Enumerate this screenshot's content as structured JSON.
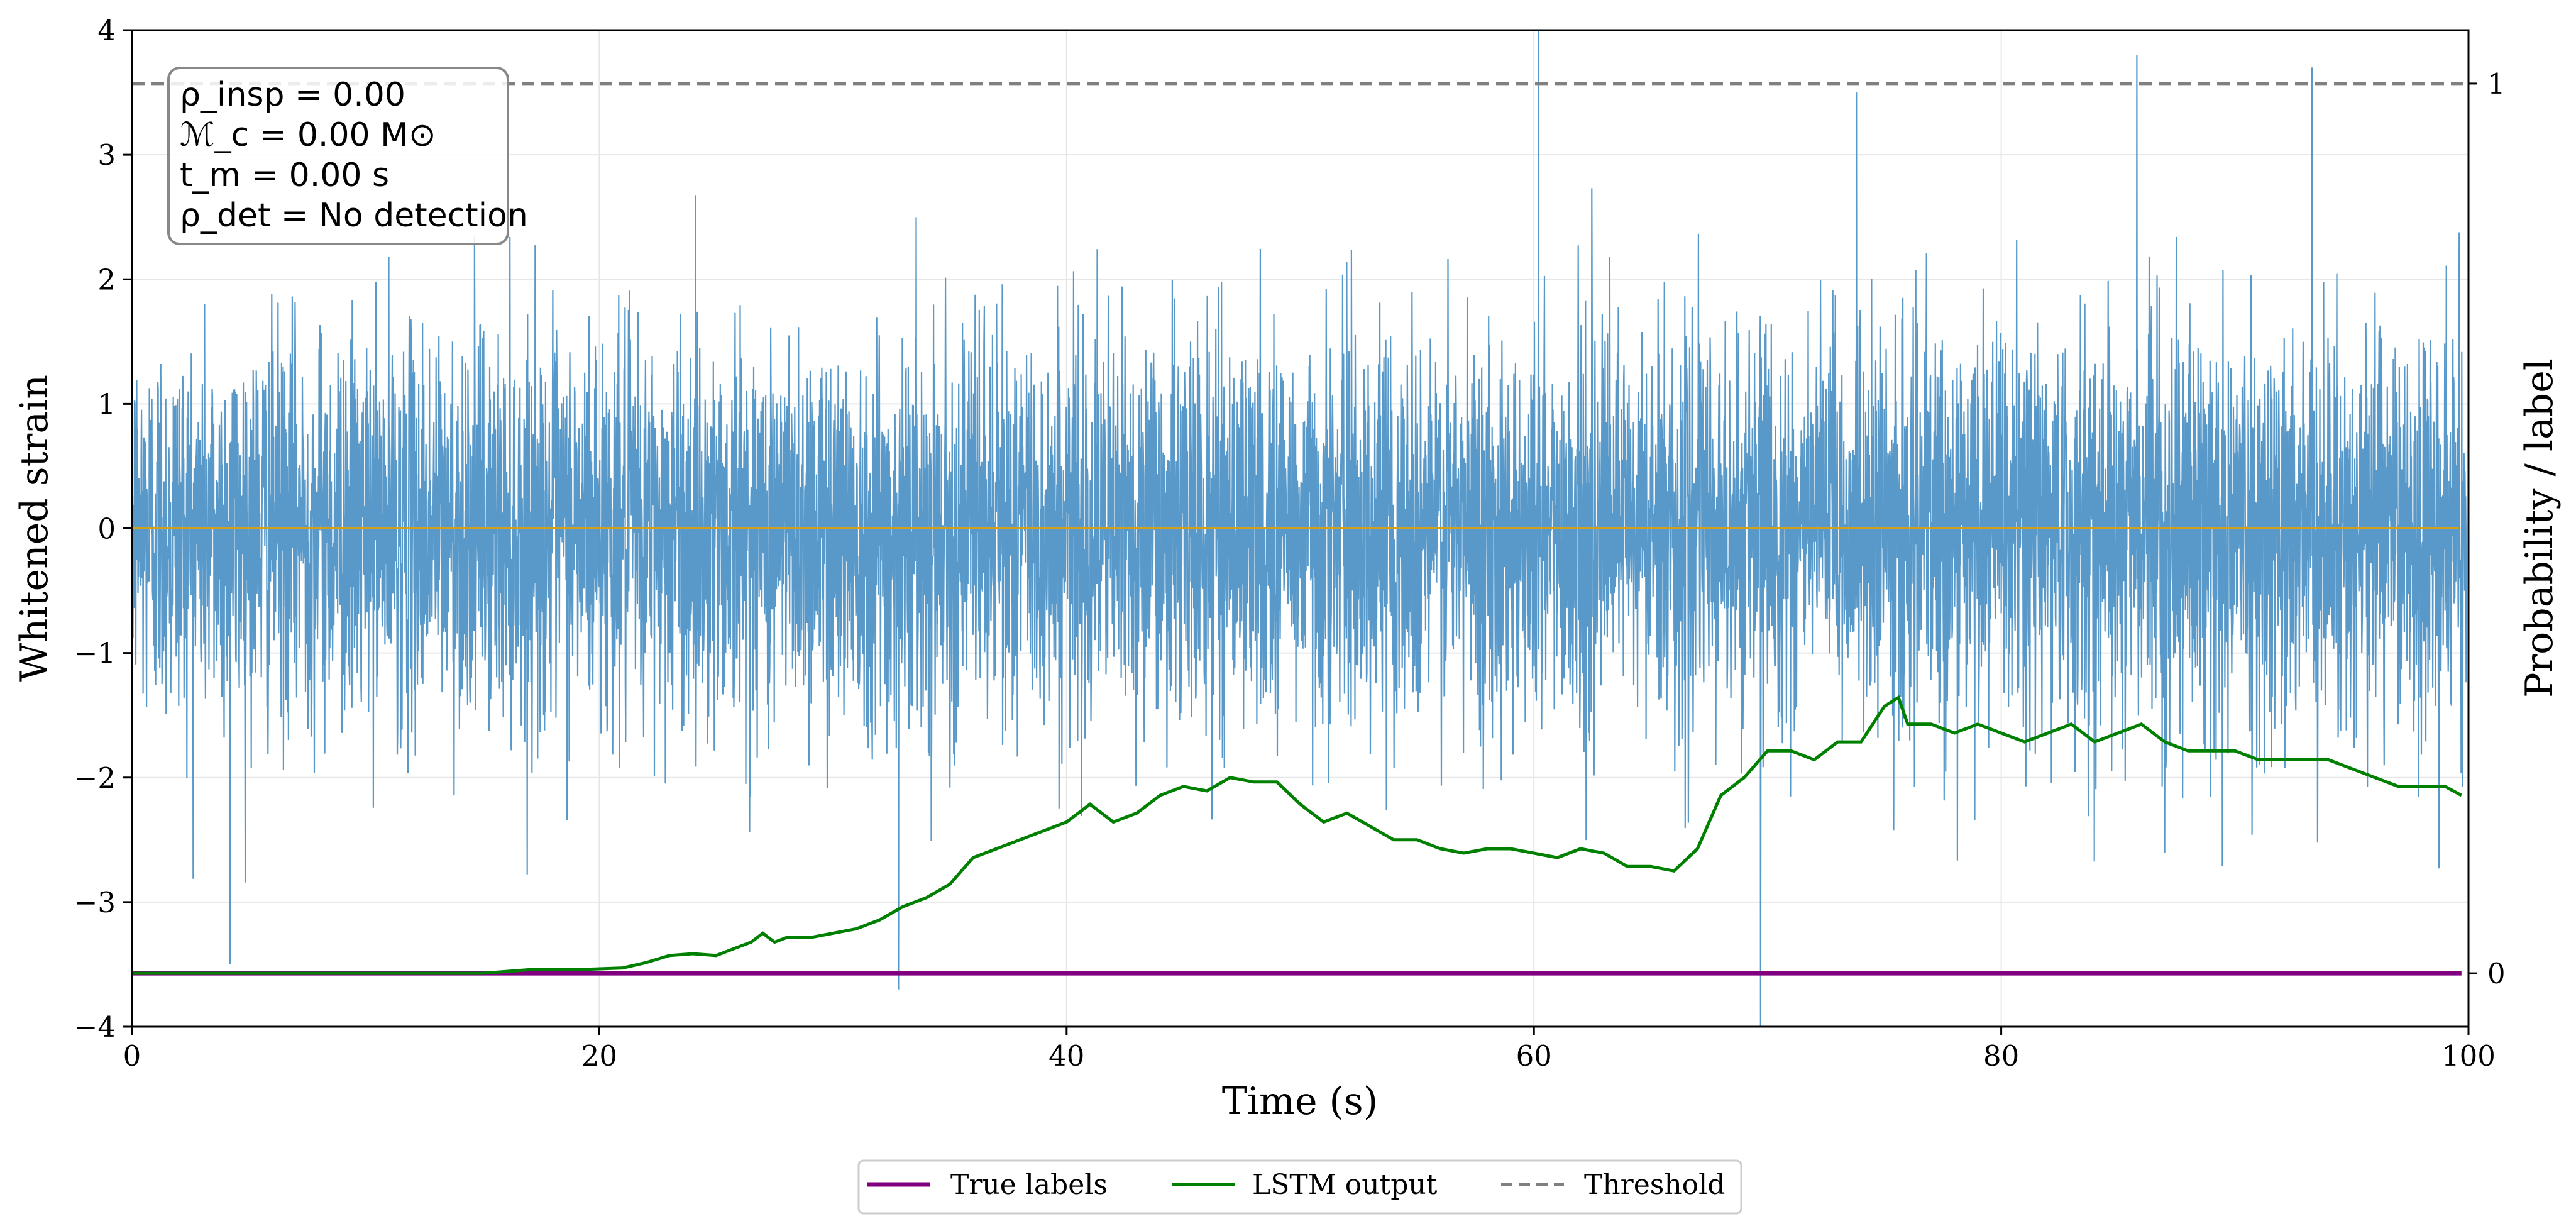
{
  "chart_data": {
    "type": "line",
    "xlabel": "Time (s)",
    "ylabel_left": "Whitened strain",
    "ylabel_right": "Probability / label",
    "xlim": [
      0,
      100
    ],
    "ylim_left": [
      -4,
      4
    ],
    "ylim_right": [
      -0.06,
      1.06
    ],
    "x_ticks": [
      0,
      20,
      40,
      60,
      80,
      100
    ],
    "y_left_ticks": [
      -4,
      -3,
      -2,
      -1,
      0,
      1,
      2,
      3,
      4
    ],
    "y_left_tick_labels": [
      "−4",
      "−3",
      "−2",
      "−1",
      "0",
      "1",
      "2",
      "3",
      "4"
    ],
    "y_right_ticks": [
      0,
      1
    ],
    "y_right_tick_labels": [
      "0",
      "1"
    ],
    "grid": true,
    "annotation": {
      "rho_insp": "ρ_insp = 0.00",
      "chirp_mass": "ℳ_c = 0.00 M⊙",
      "merger_time": "t_m = 0.00 s",
      "rho_det": "ρ_det = No detection"
    },
    "strain": {
      "name": "Whitened strain",
      "color": "#4a90c4",
      "description": "noise-like signal, approx zero mean, amplitude ±2.5 with occasional spikes",
      "spikes": [
        {
          "x": 4.2,
          "y": -3.5
        },
        {
          "x": 32.8,
          "y": -3.7
        },
        {
          "x": 60.2,
          "y": 4.0
        },
        {
          "x": 69.7,
          "y": -4.0
        },
        {
          "x": 85.8,
          "y": 3.8
        },
        {
          "x": 93.3,
          "y": 3.7
        },
        {
          "x": 73.8,
          "y": 3.5
        }
      ]
    },
    "zero_line": {
      "y": 0,
      "color": "#d4a017"
    },
    "series": [
      {
        "name": "True labels",
        "color": "#800080",
        "axis": "right",
        "x": [
          0,
          99.7
        ],
        "values": [
          0,
          0
        ]
      },
      {
        "name": "LSTM output",
        "color": "#008000",
        "axis": "right",
        "x": [
          0,
          10,
          15,
          17,
          19,
          21,
          22,
          23,
          24,
          25,
          26,
          26.5,
          27,
          27.5,
          28,
          29,
          30,
          31,
          32,
          33,
          34,
          35,
          36,
          37,
          38,
          39,
          40,
          41,
          42,
          43,
          44,
          45,
          46,
          47,
          48,
          49,
          50,
          51,
          52,
          53,
          54,
          55,
          56,
          57,
          58,
          59,
          60,
          61,
          62,
          63,
          64,
          65,
          66,
          67,
          68,
          69,
          70,
          71,
          72,
          73,
          74,
          75,
          75.6,
          76,
          77,
          78,
          79,
          80,
          81,
          82,
          83,
          84,
          85,
          86,
          87,
          88,
          89,
          90,
          91,
          92,
          93,
          94,
          95,
          96,
          97,
          98,
          99,
          99.7
        ],
        "values": [
          0.0,
          0.0,
          0.0,
          0.004,
          0.004,
          0.006,
          0.012,
          0.02,
          0.022,
          0.02,
          0.03,
          0.035,
          0.045,
          0.035,
          0.04,
          0.04,
          0.045,
          0.05,
          0.06,
          0.075,
          0.085,
          0.1,
          0.13,
          0.14,
          0.15,
          0.16,
          0.17,
          0.19,
          0.17,
          0.18,
          0.2,
          0.21,
          0.205,
          0.22,
          0.215,
          0.215,
          0.19,
          0.17,
          0.18,
          0.165,
          0.15,
          0.15,
          0.14,
          0.135,
          0.14,
          0.14,
          0.135,
          0.13,
          0.14,
          0.135,
          0.12,
          0.12,
          0.115,
          0.14,
          0.2,
          0.22,
          0.25,
          0.25,
          0.24,
          0.26,
          0.26,
          0.3,
          0.31,
          0.28,
          0.28,
          0.27,
          0.28,
          0.27,
          0.26,
          0.27,
          0.28,
          0.26,
          0.27,
          0.28,
          0.26,
          0.25,
          0.25,
          0.25,
          0.24,
          0.24,
          0.24,
          0.24,
          0.23,
          0.22,
          0.21,
          0.21,
          0.21,
          0.2
        ]
      },
      {
        "name": "Threshold",
        "color": "#808080",
        "axis": "right",
        "dashed": true,
        "x": [
          0,
          100
        ],
        "values": [
          1,
          1
        ]
      }
    ],
    "legend": {
      "placement": "bottom-center",
      "entries": [
        "True labels",
        "LSTM output",
        "Threshold"
      ]
    }
  }
}
